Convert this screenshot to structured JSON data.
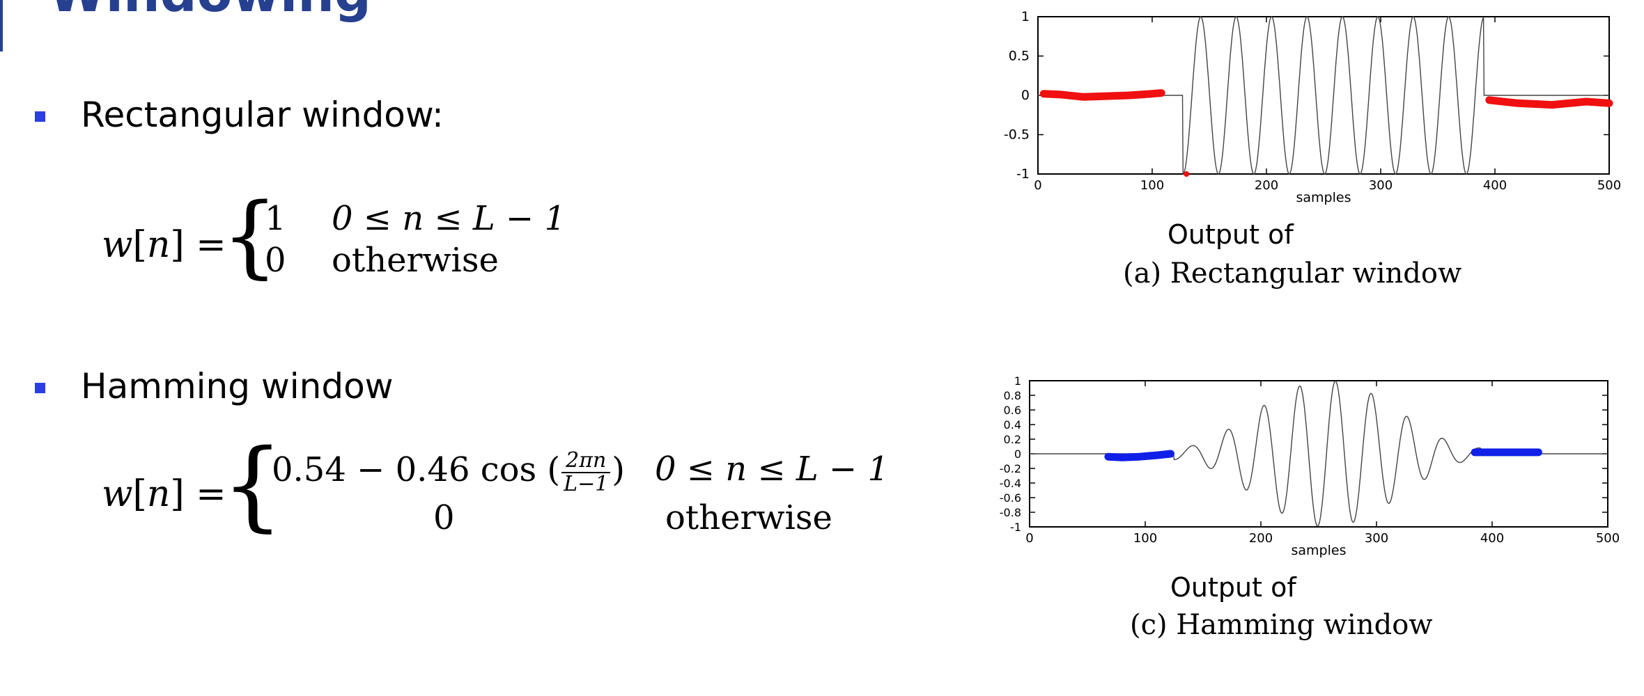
{
  "slide": {
    "title": "Windowing",
    "colors": {
      "title": "#26408f",
      "bullet": "#2b3fe0",
      "annotation_red": "#f01010",
      "annotation_blue": "#1020e8"
    }
  },
  "bullets": [
    {
      "label": "Rectangular window:"
    },
    {
      "label": "Hamming window"
    }
  ],
  "equations": {
    "rect": {
      "lhs": "w[n] =",
      "row1_value": "1",
      "row1_cond": "0 ≤ n ≤ L − 1",
      "row2_value": "0",
      "row2_cond": "otherwise"
    },
    "hamming": {
      "lhs": "w[n] =",
      "row1_value_prefix": "0.54 − 0.46 cos (",
      "frac_num": "2πn",
      "frac_den": "L−1",
      "row1_value_suffix": ")",
      "row1_cond": "0 ≤ n ≤ L − 1",
      "row2_value": "0",
      "row2_cond": "otherwise"
    }
  },
  "captions": {
    "rect_line1": "Output of",
    "rect_line2": "(a) Rectangular window",
    "hamming_line1": "Output of",
    "hamming_line2": "(c) Hamming window"
  },
  "chart_data": [
    {
      "type": "line",
      "title": "",
      "xlabel": "samples",
      "ylabel": "",
      "xlim": [
        0,
        500
      ],
      "ylim": [
        -1,
        1
      ],
      "x_ticks": [
        0,
        100,
        200,
        300,
        400,
        500
      ],
      "y_ticks": [
        1,
        0.5,
        0,
        -0.5,
        -1
      ],
      "y_tick_labels": [
        "1",
        "0.5",
        "0",
        "-0.5",
        "-1"
      ],
      "grid": false,
      "signal": {
        "window": "rectangular",
        "window_start": 127,
        "window_end": 390,
        "period": 31,
        "amplitude": 1,
        "outside_value": 0
      },
      "annotations": [
        {
          "color": "red",
          "x": [
            5,
            20,
            40,
            60,
            80,
            100,
            108
          ],
          "y": [
            0.02,
            0.01,
            -0.02,
            -0.01,
            0.0,
            0.02,
            0.03
          ]
        },
        {
          "color": "red",
          "x": [
            130
          ],
          "y": [
            -1.0
          ]
        },
        {
          "color": "red",
          "x": [
            395,
            420,
            450,
            480,
            500
          ],
          "y": [
            -0.06,
            -0.1,
            -0.12,
            -0.08,
            -0.1
          ]
        }
      ]
    },
    {
      "type": "line",
      "title": "",
      "xlabel": "samples",
      "ylabel": "",
      "xlim": [
        0,
        500
      ],
      "ylim": [
        -1,
        1
      ],
      "x_ticks": [
        0,
        100,
        200,
        300,
        400,
        500
      ],
      "y_ticks": [
        1,
        0.8,
        0.6,
        0.4,
        0.2,
        0,
        -0.2,
        -0.4,
        -0.6,
        -0.8,
        -1
      ],
      "y_tick_labels": [
        "1",
        "0.8",
        "0.6",
        "0.4",
        "0.2",
        "0",
        "-0.2",
        "-0.4",
        "-0.6",
        "-0.8",
        "-1"
      ],
      "grid": false,
      "signal": {
        "window": "hamming",
        "window_start": 125,
        "window_end": 390,
        "period": 31,
        "amplitude": 1,
        "outside_value": 0
      },
      "annotations": [
        {
          "color": "blue",
          "x": [
            68,
            80,
            95,
            110,
            122
          ],
          "y": [
            -0.04,
            -0.05,
            -0.04,
            -0.02,
            0.0
          ]
        },
        {
          "color": "blue",
          "x": [
            385,
            400,
            420,
            440
          ],
          "y": [
            0.02,
            0.02,
            0.02,
            0.02
          ]
        }
      ]
    }
  ]
}
